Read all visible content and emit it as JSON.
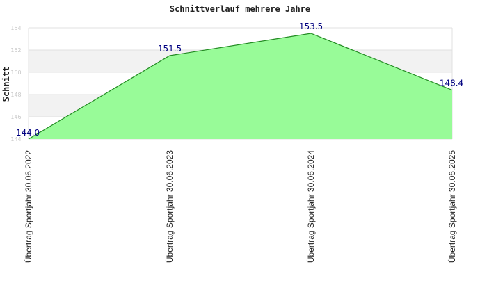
{
  "chart_data": {
    "type": "area",
    "title": "Schnittverlauf mehrere Jahre",
    "xlabel": "",
    "ylabel": "Schnitt",
    "categories": [
      "Übertrag Sportjahr 30.06.2022",
      "Übertrag Sportjahr 30.06.2023",
      "Übertrag Sportjahr 30.06.2024",
      "Übertrag Sportjahr 30.06.2025"
    ],
    "values": [
      144.0,
      151.5,
      153.5,
      148.4
    ],
    "data_labels": [
      "144.0",
      "151.5",
      "153.5",
      "148.4"
    ],
    "yticks": [
      144,
      146,
      148,
      150,
      152,
      154
    ],
    "ytick_labels": [
      "144",
      "146",
      "148",
      "150",
      "152",
      "154"
    ],
    "ylim": [
      144,
      154
    ],
    "grid": true,
    "colors": {
      "fill": "#98fb98",
      "line": "#228b22",
      "band": "#f2f2f2",
      "gridline": "#e0e0e0",
      "data_label": "#000080"
    }
  }
}
